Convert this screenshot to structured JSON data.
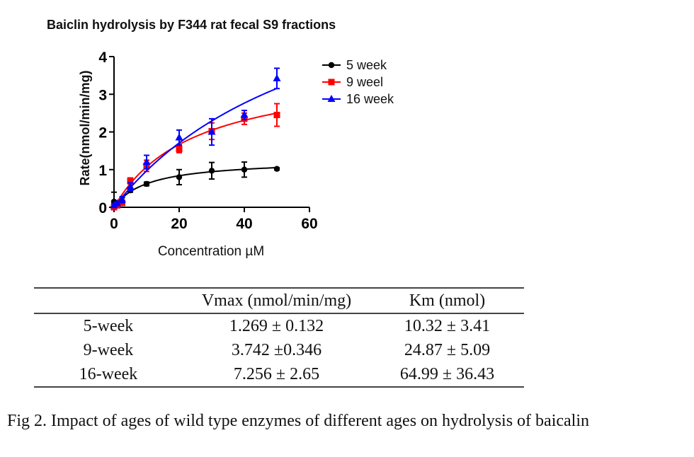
{
  "chart_data": {
    "type": "line",
    "title": "Baiclin hydrolysis by F344 rat fecal S9 fractions",
    "xlabel": "Concentration µM",
    "ylabel": "Rate(nmol/min/mg)",
    "xlim": [
      0,
      60
    ],
    "ylim": [
      0,
      4
    ],
    "xticks": [
      "0",
      "20",
      "40",
      "60"
    ],
    "yticks": [
      "0",
      "1",
      "2",
      "3",
      "4"
    ],
    "legend_position": "top-right",
    "series": [
      {
        "name": "5 week",
        "color": "#000000",
        "marker": "circle",
        "x": [
          0,
          1,
          2.5,
          5,
          10,
          20,
          30,
          40,
          50
        ],
        "y": [
          0.15,
          0.05,
          0.15,
          0.45,
          0.62,
          0.8,
          0.97,
          1.0,
          1.02
        ],
        "err": [
          0.25,
          0.1,
          0.1,
          0.05,
          0.05,
          0.2,
          0.22,
          0.2,
          0.03
        ],
        "fit": {
          "vmax": 1.269,
          "km": 10.32
        }
      },
      {
        "name": "9 weel",
        "color": "#ff0000",
        "marker": "square",
        "x": [
          0,
          1,
          2.5,
          5,
          10,
          20,
          30,
          40,
          50
        ],
        "y": [
          0.0,
          0.05,
          0.12,
          0.7,
          1.1,
          1.55,
          2.02,
          2.35,
          2.45
        ],
        "err": [
          0.05,
          0.05,
          0.05,
          0.08,
          0.15,
          0.1,
          0.22,
          0.15,
          0.3
        ],
        "fit": {
          "vmax": 3.742,
          "km": 24.87
        }
      },
      {
        "name": "16 week",
        "color": "#0000ff",
        "marker": "triangle",
        "x": [
          0,
          1,
          2.5,
          5,
          10,
          20,
          30,
          40,
          50
        ],
        "y": [
          0.05,
          0.1,
          0.2,
          0.55,
          1.2,
          1.85,
          2.0,
          2.45,
          3.42
        ],
        "err": [
          0.05,
          0.05,
          0.08,
          0.1,
          0.18,
          0.2,
          0.35,
          0.12,
          0.27
        ],
        "fit": {
          "vmax": 7.256,
          "km": 64.99
        }
      }
    ]
  },
  "table": {
    "headers": [
      "",
      "Vmax (nmol/min/mg)",
      "Km (nmol)"
    ],
    "rows": [
      [
        "5-week",
        "1.269 ± 0.132",
        "10.32 ± 3.41"
      ],
      [
        "9-week",
        "3.742 ±0.346",
        "24.87 ± 5.09"
      ],
      [
        "16-week",
        "7.256 ± 2.65",
        "64.99 ± 36.43"
      ]
    ]
  },
  "caption": "Fig 2. Impact of ages of wild type enzymes of different ages on hydrolysis of baicalin"
}
